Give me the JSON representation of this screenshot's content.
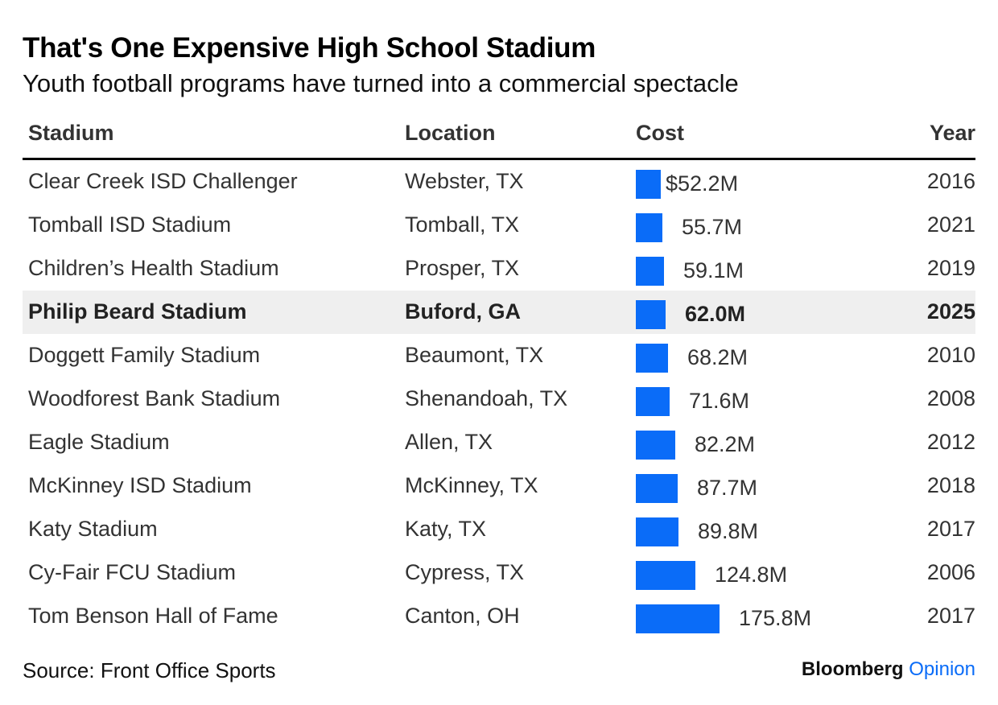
{
  "title": "That's One Expensive High School Stadium",
  "subtitle": "Youth football programs have turned into a commercial spectacle",
  "headers": {
    "stadium": "Stadium",
    "location": "Location",
    "cost": "Cost",
    "year": "Year"
  },
  "source": "Source: Front Office Sports",
  "brand": {
    "name": "Bloomberg",
    "section": "Opinion"
  },
  "colors": {
    "bar": "#0a6cf8",
    "highlight_row": "#efefef"
  },
  "chart_data": {
    "type": "table",
    "bar_scale_max": 175.8,
    "columns": [
      "Stadium",
      "Location",
      "Cost",
      "Year"
    ],
    "rows": [
      {
        "stadium": "Clear Creek ISD Challenger",
        "location": "Webster, TX",
        "cost": 52.2,
        "cost_label": "$52.2M",
        "year": "2016"
      },
      {
        "stadium": "Tomball ISD Stadium",
        "location": "Tomball, TX",
        "cost": 55.7,
        "cost_label": "55.7M",
        "year": "2021"
      },
      {
        "stadium": "Children’s Health Stadium",
        "location": "Prosper, TX",
        "cost": 59.1,
        "cost_label": "59.1M",
        "year": "2019"
      },
      {
        "stadium": "Philip Beard Stadium",
        "location": "Buford, GA",
        "cost": 62.0,
        "cost_label": "62.0M",
        "year": "2025",
        "highlight": true
      },
      {
        "stadium": "Doggett Family Stadium",
        "location": "Beaumont, TX",
        "cost": 68.2,
        "cost_label": "68.2M",
        "year": "2010"
      },
      {
        "stadium": "Woodforest Bank Stadium",
        "location": "Shenandoah, TX",
        "cost": 71.6,
        "cost_label": "71.6M",
        "year": "2008"
      },
      {
        "stadium": "Eagle Stadium",
        "location": "Allen, TX",
        "cost": 82.2,
        "cost_label": "82.2M",
        "year": "2012"
      },
      {
        "stadium": "McKinney ISD Stadium",
        "location": "McKinney, TX",
        "cost": 87.7,
        "cost_label": "87.7M",
        "year": "2018"
      },
      {
        "stadium": "Katy Stadium",
        "location": "Katy, TX",
        "cost": 89.8,
        "cost_label": "89.8M",
        "year": "2017"
      },
      {
        "stadium": "Cy-Fair FCU Stadium",
        "location": "Cypress, TX",
        "cost": 124.8,
        "cost_label": "124.8M",
        "year": "2006"
      },
      {
        "stadium": "Tom Benson Hall of Fame",
        "location": "Canton, OH",
        "cost": 175.8,
        "cost_label": "175.8M",
        "year": "2017"
      }
    ]
  }
}
